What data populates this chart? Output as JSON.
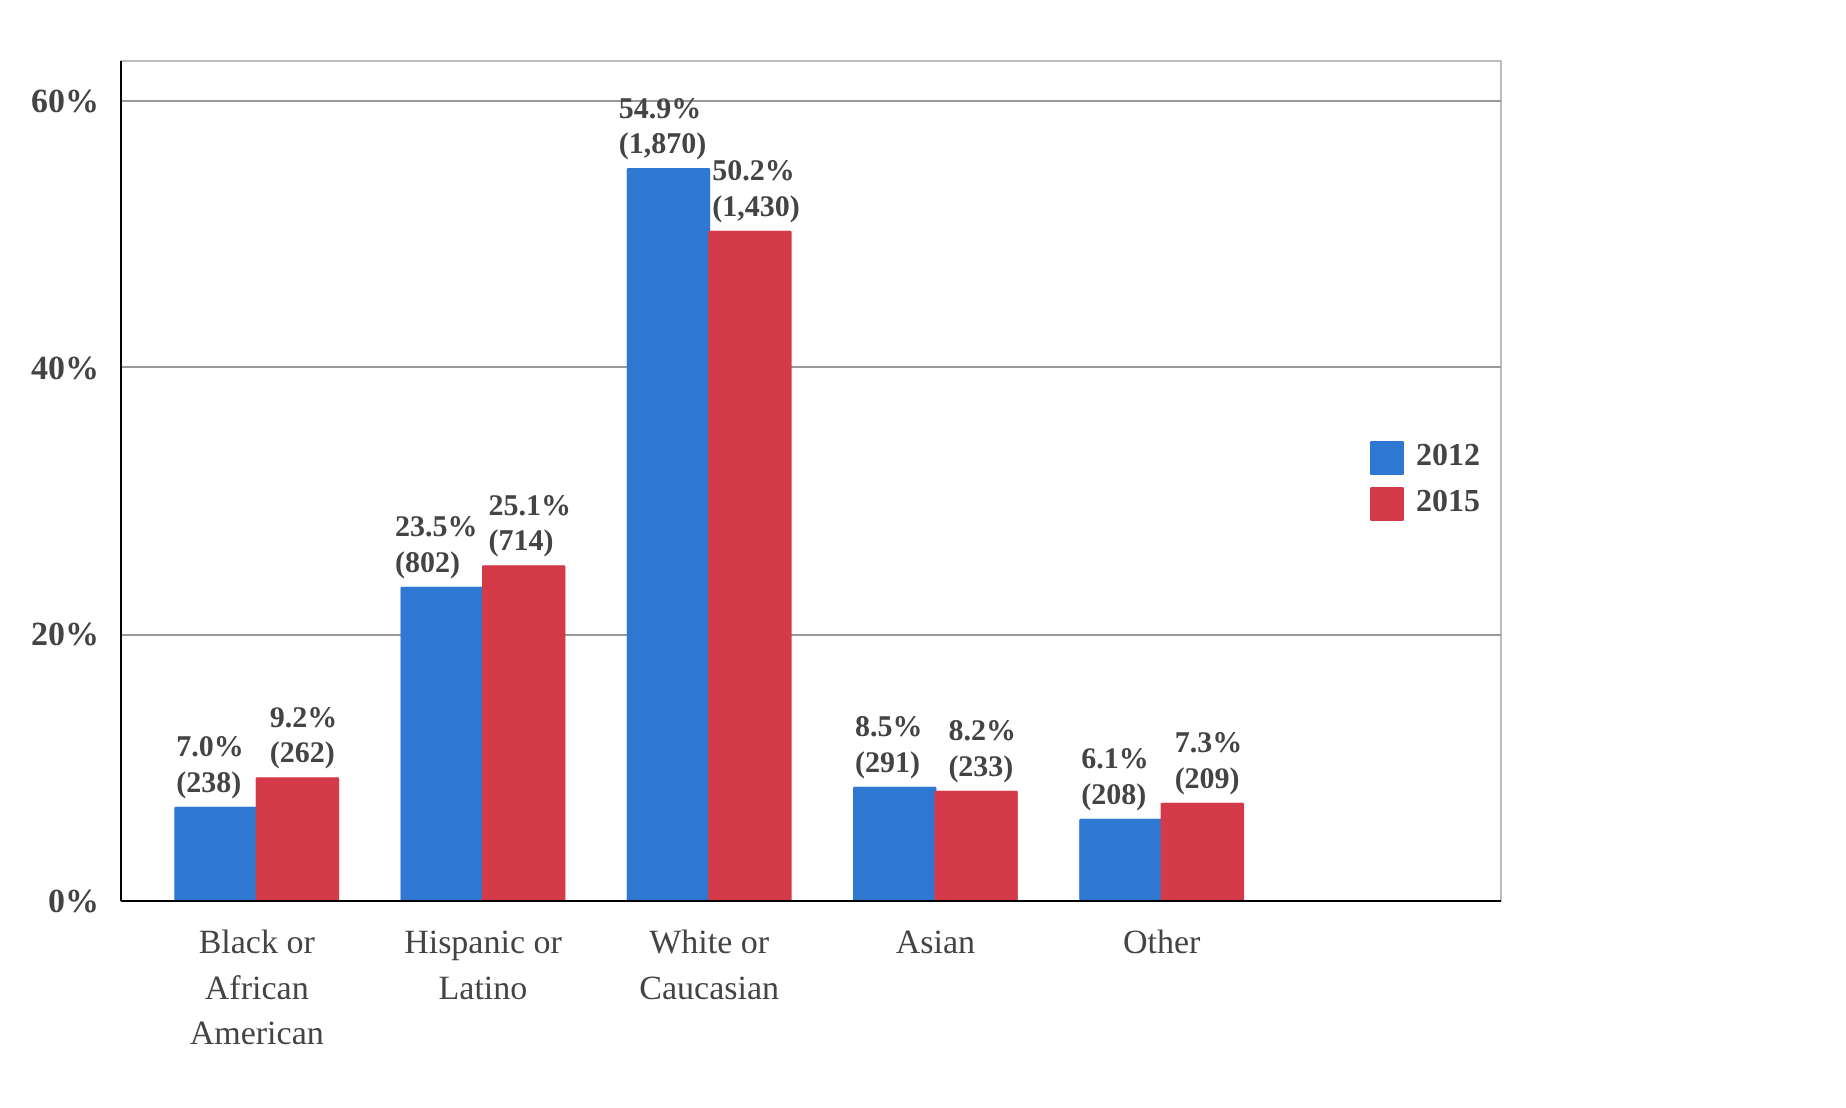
{
  "chart_data": {
    "type": "bar",
    "categories": [
      "Black or\nAfrican\nAmerican",
      "Hispanic or\nLatino",
      "White or\nCaucasian",
      "Asian",
      "Other"
    ],
    "series": [
      {
        "name": "2012",
        "color": "#2f78d2",
        "values": [
          7.0,
          23.5,
          54.9,
          8.5,
          6.1
        ],
        "value_labels": [
          "7.0%\n(238)",
          "23.5%\n(802)",
          "54.9%\n(1,870)",
          "8.5%\n(291)",
          "6.1%\n(208)"
        ]
      },
      {
        "name": "2015",
        "color": "#d43a48",
        "values": [
          9.2,
          25.1,
          50.2,
          8.2,
          7.3
        ],
        "value_labels": [
          "9.2%\n(262)",
          "25.1%\n(714)",
          "50.2%\n(1,430)",
          "8.2%\n(233)",
          "7.3%\n(209)"
        ]
      }
    ],
    "ylim": [
      0,
      63
    ],
    "yticks": [
      {
        "value": 0,
        "label": "0%"
      },
      {
        "value": 20,
        "label": "20%"
      },
      {
        "value": 40,
        "label": "40%"
      },
      {
        "value": 60,
        "label": "60%"
      }
    ],
    "grid": "y",
    "legend": "right"
  }
}
